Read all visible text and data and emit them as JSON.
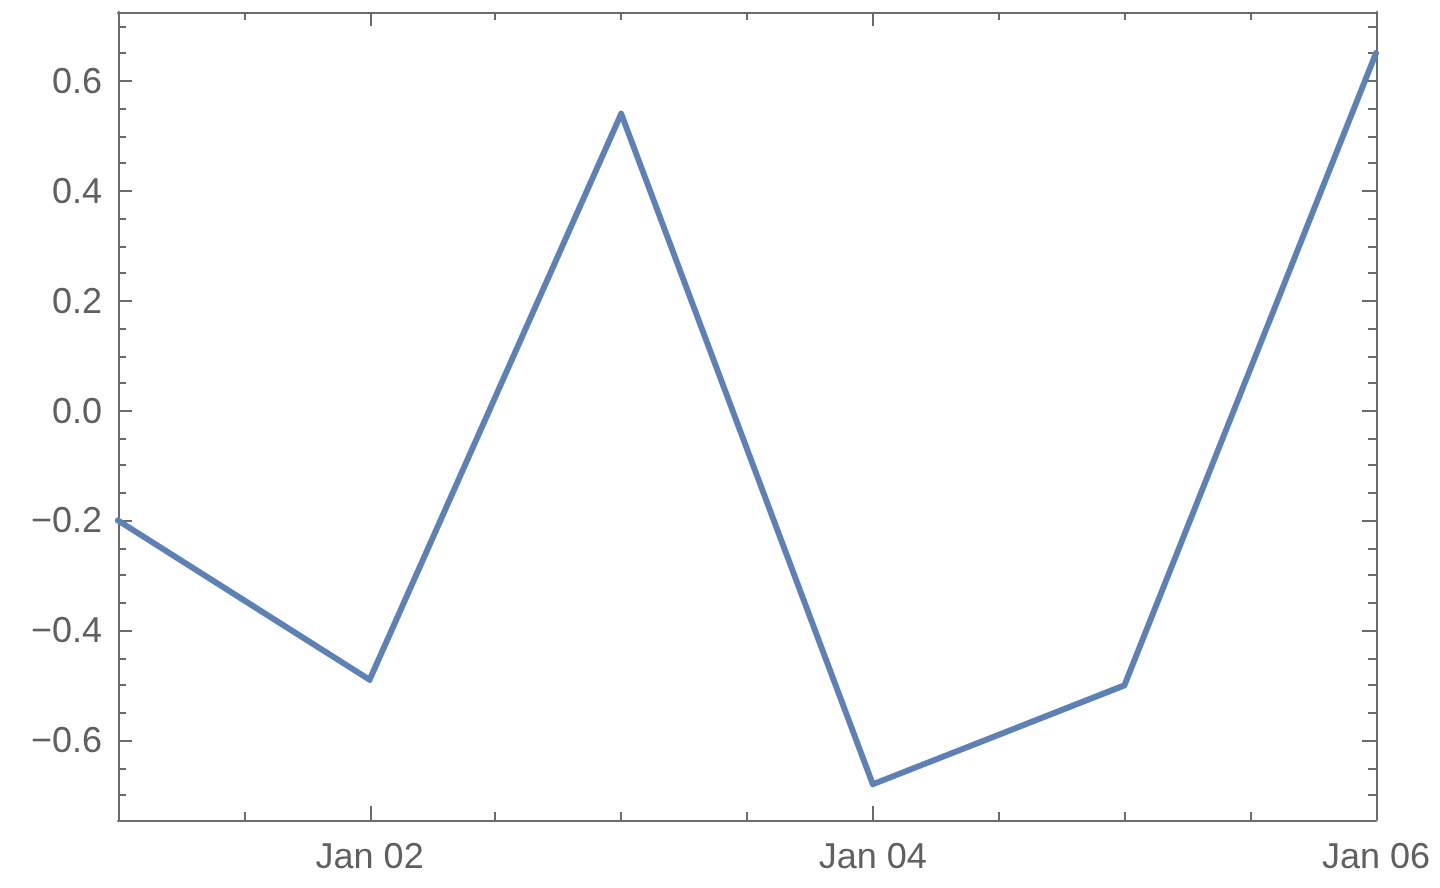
{
  "chart_data": {
    "type": "line",
    "x": [
      "--01-01",
      "--01-02",
      "--01-03",
      "--01-04",
      "--01-05",
      "--01-06"
    ],
    "values": [
      -0.2,
      -0.49,
      0.54,
      -0.68,
      -0.5,
      0.65
    ],
    "color": "#5e81b5",
    "xlim": [
      "--01-01",
      "--01-06"
    ],
    "xticks": [
      {
        "value": "--01-01",
        "label": null
      },
      {
        "value": "--01-01T12:00",
        "label": null
      },
      {
        "value": "--01-02",
        "label": "Jan 02"
      },
      {
        "value": "--01-02T12:00",
        "label": null
      },
      {
        "value": "--01-03",
        "label": null
      },
      {
        "value": "--01-03T12:00",
        "label": null
      },
      {
        "value": "--01-04",
        "label": "Jan 04"
      },
      {
        "value": "--01-04T12:00",
        "label": null
      },
      {
        "value": "--01-05",
        "label": null
      },
      {
        "value": "--01-05T12:00",
        "label": null
      },
      {
        "value": "--01-06",
        "label": "Jan 06"
      }
    ],
    "ylim": [
      -0.745,
      0.725
    ],
    "yticks": [
      {
        "value": -0.7,
        "label": null
      },
      {
        "value": -0.65,
        "label": null
      },
      {
        "value": -0.6,
        "label": "−0.6"
      },
      {
        "value": -0.55,
        "label": null
      },
      {
        "value": -0.5,
        "label": null
      },
      {
        "value": -0.45,
        "label": null
      },
      {
        "value": -0.4,
        "label": "−0.4"
      },
      {
        "value": -0.35,
        "label": null
      },
      {
        "value": -0.3,
        "label": null
      },
      {
        "value": -0.25,
        "label": null
      },
      {
        "value": -0.2,
        "label": "−0.2"
      },
      {
        "value": -0.15,
        "label": null
      },
      {
        "value": -0.1,
        "label": null
      },
      {
        "value": -0.05,
        "label": null
      },
      {
        "value": 0,
        "label": "0.0"
      },
      {
        "value": 0.05,
        "label": null
      },
      {
        "value": 0.1,
        "label": null
      },
      {
        "value": 0.15,
        "label": null
      },
      0.2,
      {
        "value": 0.25,
        "label": null
      },
      {
        "value": 0.3,
        "label": null
      },
      {
        "value": 0.35,
        "label": null
      },
      0.4,
      {
        "value": 0.45,
        "label": null
      },
      {
        "value": 0.5,
        "label": null
      },
      {
        "value": 0.55,
        "label": null
      },
      0.6,
      {
        "value": 0.65,
        "label": null
      },
      {
        "value": 0.7,
        "label": null
      }
    ],
    "grid": false,
    "marker": "none",
    "line_style": "solid"
  }
}
